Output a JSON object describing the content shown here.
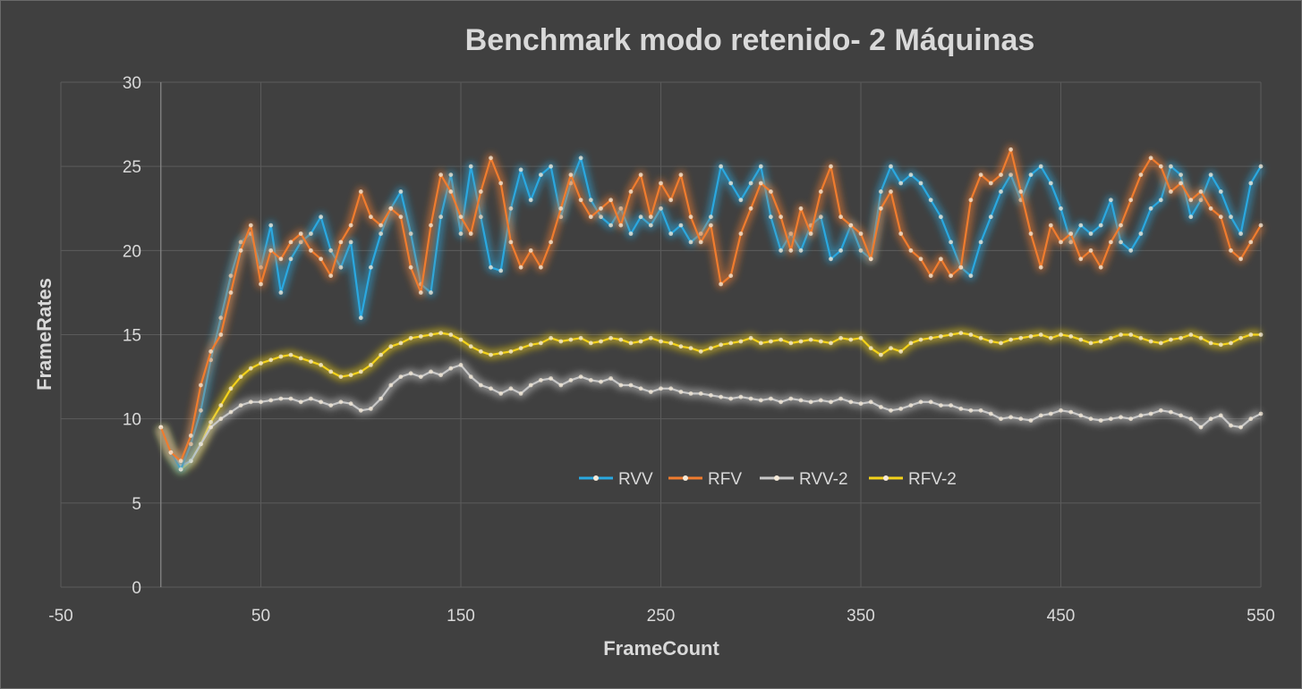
{
  "chart_data": {
    "type": "scatter",
    "title": "Benchmark modo retenido- 2 Máquinas",
    "xlabel": "FrameCount",
    "ylabel": "FrameRates",
    "xlim": [
      -50,
      550
    ],
    "ylim": [
      0,
      30
    ],
    "x_ticks": [
      "-50",
      "50",
      "150",
      "250",
      "350",
      "450",
      "550"
    ],
    "y_ticks": [
      "0",
      "5",
      "10",
      "15",
      "20",
      "25",
      "30"
    ],
    "grid": true,
    "legend_position": "inside-bottom-center",
    "series": [
      {
        "name": "RVV",
        "color": "#2aa8e0",
        "x": [
          0,
          5,
          10,
          15,
          20,
          25,
          30,
          35,
          40,
          45,
          50,
          55,
          60,
          65,
          70,
          75,
          80,
          85,
          90,
          95,
          100,
          105,
          110,
          115,
          120,
          125,
          130,
          135,
          140,
          145,
          150,
          155,
          160,
          165,
          170,
          175,
          180,
          185,
          190,
          195,
          200,
          205,
          210,
          215,
          220,
          225,
          230,
          235,
          240,
          245,
          250,
          255,
          260,
          265,
          270,
          275,
          280,
          285,
          290,
          295,
          300,
          305,
          310,
          315,
          320,
          325,
          330,
          335,
          340,
          345,
          350,
          355,
          360,
          365,
          370,
          375,
          380,
          385,
          390,
          395,
          400,
          405,
          410,
          415,
          420,
          425,
          430,
          435,
          440,
          445,
          450,
          455,
          460,
          465,
          470,
          475,
          480,
          485,
          490,
          495,
          500,
          505,
          510,
          515,
          520,
          525,
          530,
          535,
          540,
          545,
          550
        ],
        "y": [
          9.5,
          8.0,
          7.0,
          8.5,
          10.5,
          13.5,
          16.0,
          18.5,
          20.5,
          21.0,
          19.0,
          21.5,
          17.5,
          19.5,
          20.5,
          21.0,
          22.0,
          20.0,
          19.0,
          20.5,
          16.0,
          19.0,
          21.0,
          22.5,
          23.5,
          21.0,
          18.0,
          17.5,
          22.0,
          24.5,
          21.0,
          25.0,
          22.0,
          19.0,
          18.8,
          22.5,
          24.8,
          23.0,
          24.5,
          25.0,
          22.0,
          24.0,
          25.5,
          23.0,
          22.0,
          21.5,
          22.5,
          21.0,
          22.0,
          21.5,
          22.5,
          21.0,
          21.5,
          20.5,
          21.0,
          22.0,
          25.0,
          24.0,
          23.0,
          24.0,
          25.0,
          22.0,
          20.0,
          21.0,
          20.0,
          21.5,
          22.0,
          19.5,
          20.0,
          21.5,
          20.0,
          19.5,
          23.5,
          25.0,
          24.0,
          24.5,
          24.0,
          23.0,
          22.0,
          20.5,
          19.0,
          18.5,
          20.5,
          22.0,
          23.5,
          24.5,
          23.0,
          24.5,
          25.0,
          24.0,
          22.5,
          20.5,
          21.5,
          21.0,
          21.5,
          23.0,
          20.5,
          20.0,
          21.0,
          22.5,
          23.0,
          25.0,
          24.5,
          22.0,
          23.0,
          24.5,
          23.5,
          22.0,
          21.0,
          24.0,
          25.0
        ]
      },
      {
        "name": "RFV",
        "color": "#f07c2e",
        "x": [
          0,
          5,
          10,
          15,
          20,
          25,
          30,
          35,
          40,
          45,
          50,
          55,
          60,
          65,
          70,
          75,
          80,
          85,
          90,
          95,
          100,
          105,
          110,
          115,
          120,
          125,
          130,
          135,
          140,
          145,
          150,
          155,
          160,
          165,
          170,
          175,
          180,
          185,
          190,
          195,
          200,
          205,
          210,
          215,
          220,
          225,
          230,
          235,
          240,
          245,
          250,
          255,
          260,
          265,
          270,
          275,
          280,
          285,
          290,
          295,
          300,
          305,
          310,
          315,
          320,
          325,
          330,
          335,
          340,
          345,
          350,
          355,
          360,
          365,
          370,
          375,
          380,
          385,
          390,
          395,
          400,
          405,
          410,
          415,
          420,
          425,
          430,
          435,
          440,
          445,
          450,
          455,
          460,
          465,
          470,
          475,
          480,
          485,
          490,
          495,
          500,
          505,
          510,
          515,
          520,
          525,
          530,
          535,
          540,
          545,
          550
        ],
        "y": [
          9.5,
          8.0,
          7.5,
          9.0,
          12.0,
          14.0,
          15.0,
          17.5,
          20.0,
          21.5,
          18.0,
          20.0,
          19.5,
          20.5,
          21.0,
          20.0,
          19.5,
          18.5,
          20.5,
          21.5,
          23.5,
          22.0,
          21.5,
          22.5,
          22.0,
          19.0,
          17.5,
          21.5,
          24.5,
          23.5,
          22.0,
          21.0,
          23.5,
          25.5,
          24.0,
          20.5,
          19.0,
          20.0,
          19.0,
          20.5,
          22.5,
          24.5,
          23.0,
          22.0,
          22.5,
          23.0,
          21.5,
          23.5,
          24.5,
          22.0,
          24.0,
          23.0,
          24.5,
          22.0,
          20.5,
          21.5,
          18.0,
          18.5,
          21.0,
          22.5,
          24.0,
          23.5,
          22.0,
          20.0,
          22.5,
          21.0,
          23.5,
          25.0,
          22.0,
          21.5,
          21.0,
          19.5,
          22.5,
          23.5,
          21.0,
          20.0,
          19.5,
          18.5,
          19.5,
          18.5,
          19.0,
          23.0,
          24.5,
          24.0,
          24.5,
          26.0,
          23.5,
          21.0,
          19.0,
          21.5,
          20.5,
          21.0,
          19.5,
          20.0,
          19.0,
          20.5,
          21.5,
          23.0,
          24.5,
          25.5,
          25.0,
          23.5,
          24.0,
          23.0,
          23.5,
          22.5,
          22.0,
          20.0,
          19.5,
          20.5,
          21.5
        ]
      },
      {
        "name": "RVV-2",
        "color": "#c8c8c8",
        "x": [
          0,
          5,
          10,
          15,
          20,
          25,
          30,
          35,
          40,
          45,
          50,
          55,
          60,
          65,
          70,
          75,
          80,
          85,
          90,
          95,
          100,
          105,
          110,
          115,
          120,
          125,
          130,
          135,
          140,
          145,
          150,
          155,
          160,
          165,
          170,
          175,
          180,
          185,
          190,
          195,
          200,
          205,
          210,
          215,
          220,
          225,
          230,
          235,
          240,
          245,
          250,
          255,
          260,
          265,
          270,
          275,
          280,
          285,
          290,
          295,
          300,
          305,
          310,
          315,
          320,
          325,
          330,
          335,
          340,
          345,
          350,
          355,
          360,
          365,
          370,
          375,
          380,
          385,
          390,
          395,
          400,
          405,
          410,
          415,
          420,
          425,
          430,
          435,
          440,
          445,
          450,
          455,
          460,
          465,
          470,
          475,
          480,
          485,
          490,
          495,
          500,
          505,
          510,
          515,
          520,
          525,
          530,
          535,
          540,
          545,
          550
        ],
        "y": [
          9.5,
          8.0,
          7.2,
          7.5,
          8.5,
          9.5,
          10.0,
          10.4,
          10.8,
          11.0,
          11.0,
          11.1,
          11.2,
          11.2,
          11.0,
          11.2,
          11.0,
          10.8,
          11.0,
          10.9,
          10.5,
          10.6,
          11.2,
          12.0,
          12.5,
          12.7,
          12.5,
          12.8,
          12.6,
          13.0,
          13.2,
          12.5,
          12.0,
          11.8,
          11.5,
          11.8,
          11.5,
          12.0,
          12.3,
          12.4,
          12.0,
          12.3,
          12.5,
          12.3,
          12.2,
          12.4,
          12.0,
          12.0,
          11.8,
          11.6,
          11.8,
          11.8,
          11.6,
          11.5,
          11.5,
          11.4,
          11.3,
          11.2,
          11.3,
          11.2,
          11.1,
          11.2,
          11.0,
          11.2,
          11.1,
          11.0,
          11.1,
          11.0,
          11.2,
          11.0,
          10.9,
          11.0,
          10.7,
          10.5,
          10.6,
          10.8,
          11.0,
          11.0,
          10.8,
          10.8,
          10.6,
          10.5,
          10.5,
          10.3,
          10.0,
          10.1,
          10.0,
          9.9,
          10.2,
          10.3,
          10.5,
          10.4,
          10.2,
          10.0,
          9.9,
          10.0,
          10.1,
          10.0,
          10.2,
          10.3,
          10.5,
          10.4,
          10.2,
          10.0,
          9.5,
          10.0,
          10.2,
          9.6,
          9.5,
          10.0,
          10.3
        ]
      },
      {
        "name": "RFV-2",
        "color": "#f3d21a",
        "x": [
          0,
          5,
          10,
          15,
          20,
          25,
          30,
          35,
          40,
          45,
          50,
          55,
          60,
          65,
          70,
          75,
          80,
          85,
          90,
          95,
          100,
          105,
          110,
          115,
          120,
          125,
          130,
          135,
          140,
          145,
          150,
          155,
          160,
          165,
          170,
          175,
          180,
          185,
          190,
          195,
          200,
          205,
          210,
          215,
          220,
          225,
          230,
          235,
          240,
          245,
          250,
          255,
          260,
          265,
          270,
          275,
          280,
          285,
          290,
          295,
          300,
          305,
          310,
          315,
          320,
          325,
          330,
          335,
          340,
          345,
          350,
          355,
          360,
          365,
          370,
          375,
          380,
          385,
          390,
          395,
          400,
          405,
          410,
          415,
          420,
          425,
          430,
          435,
          440,
          445,
          450,
          455,
          460,
          465,
          470,
          475,
          480,
          485,
          490,
          495,
          500,
          505,
          510,
          515,
          520,
          525,
          530,
          535,
          540,
          545,
          550
        ],
        "y": [
          9.5,
          8.0,
          7.0,
          7.5,
          8.5,
          9.8,
          10.8,
          11.8,
          12.5,
          13.0,
          13.3,
          13.5,
          13.7,
          13.8,
          13.6,
          13.4,
          13.2,
          12.8,
          12.5,
          12.6,
          12.8,
          13.2,
          13.8,
          14.3,
          14.5,
          14.8,
          14.9,
          15.0,
          15.1,
          15.0,
          14.7,
          14.3,
          14.0,
          13.8,
          13.9,
          14.0,
          14.2,
          14.4,
          14.5,
          14.8,
          14.6,
          14.7,
          14.8,
          14.5,
          14.6,
          14.8,
          14.7,
          14.5,
          14.6,
          14.8,
          14.6,
          14.5,
          14.3,
          14.2,
          14.0,
          14.2,
          14.4,
          14.5,
          14.6,
          14.8,
          14.5,
          14.6,
          14.7,
          14.5,
          14.6,
          14.7,
          14.6,
          14.5,
          14.8,
          14.7,
          14.8,
          14.2,
          13.8,
          14.2,
          14.0,
          14.5,
          14.7,
          14.8,
          14.9,
          15.0,
          15.1,
          15.0,
          14.8,
          14.6,
          14.5,
          14.7,
          14.8,
          14.9,
          15.0,
          14.8,
          15.0,
          14.9,
          14.7,
          14.5,
          14.6,
          14.8,
          15.0,
          15.0,
          14.8,
          14.6,
          14.5,
          14.7,
          14.8,
          15.0,
          14.8,
          14.5,
          14.4,
          14.5,
          14.8,
          15.0,
          15.0
        ]
      }
    ]
  }
}
